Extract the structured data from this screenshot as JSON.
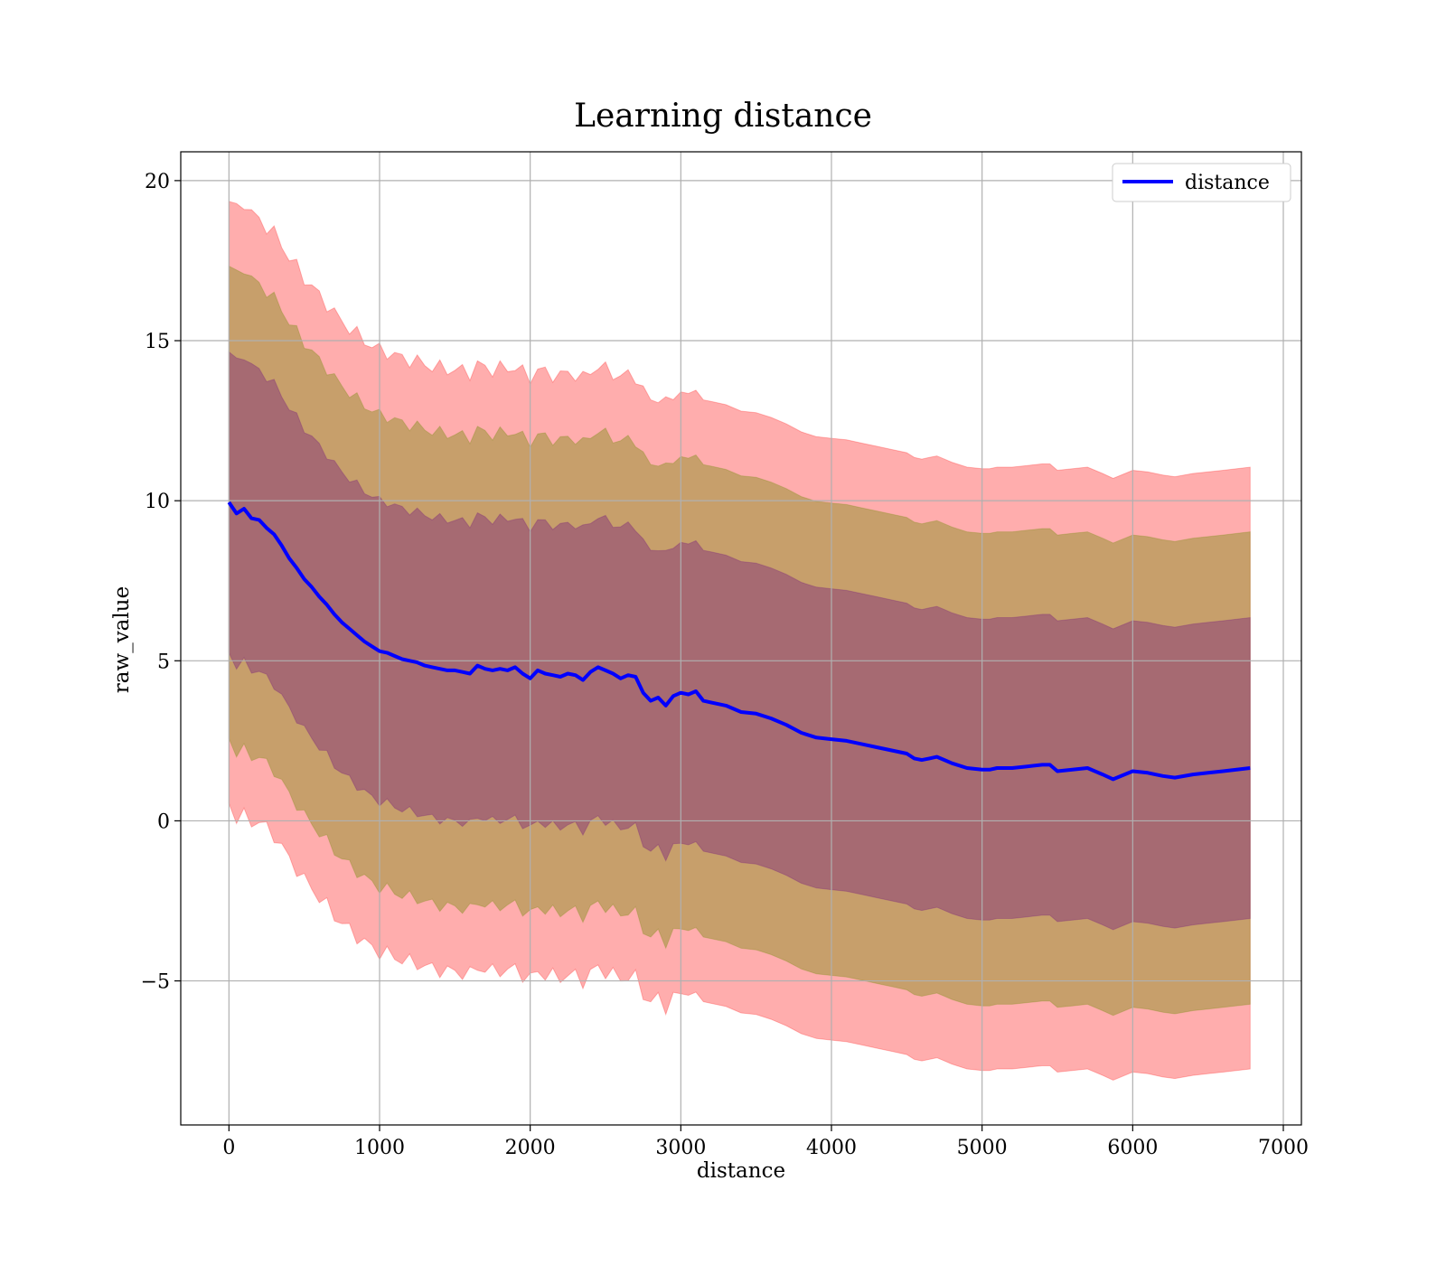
{
  "chart_data": {
    "type": "line",
    "title": "Learning distance",
    "xlabel": "distance",
    "ylabel": "raw_value",
    "xlim": [
      -320,
      7120
    ],
    "ylim": [
      -9.5,
      20.9
    ],
    "xticks": [
      0,
      1000,
      2000,
      3000,
      4000,
      5000,
      6000,
      7000
    ],
    "xtick_labels": [
      "0",
      "1000",
      "2000",
      "3000",
      "4000",
      "5000",
      "6000",
      "7000"
    ],
    "yticks": [
      -5,
      0,
      5,
      10,
      15,
      20
    ],
    "ytick_labels": [
      "−5",
      "0",
      "5",
      "10",
      "15",
      "20"
    ],
    "grid": true,
    "legend": {
      "placement": "top-right",
      "entries": [
        "distance"
      ]
    },
    "colors": {
      "line": "#0000ff",
      "band": "#ff0000",
      "band_inner": "#6a0a80",
      "band_mid": "#6b8a00"
    },
    "series": [
      {
        "name": "distance",
        "x": [
          0,
          50,
          100,
          150,
          200,
          250,
          300,
          350,
          400,
          450,
          500,
          550,
          600,
          650,
          700,
          750,
          800,
          850,
          900,
          950,
          1000,
          1050,
          1100,
          1150,
          1200,
          1250,
          1300,
          1350,
          1400,
          1450,
          1500,
          1550,
          1600,
          1650,
          1700,
          1750,
          1800,
          1850,
          1900,
          1950,
          2000,
          2050,
          2100,
          2150,
          2200,
          2250,
          2300,
          2350,
          2400,
          2450,
          2500,
          2550,
          2600,
          2650,
          2700,
          2750,
          2800,
          2850,
          2900,
          2950,
          3000,
          3050,
          3100,
          3150,
          3200,
          3300,
          3400,
          3500,
          3600,
          3700,
          3800,
          3900,
          4000,
          4100,
          4200,
          4300,
          4400,
          4500,
          4550,
          4600,
          4650,
          4700,
          4750,
          4800,
          4900,
          5000,
          5050,
          5100,
          5200,
          5300,
          5400,
          5450,
          5500,
          5600,
          5700,
          5800,
          5870,
          6000,
          6100,
          6200,
          6280,
          6400,
          6500,
          6600,
          6780
        ],
        "values": [
          9.95,
          9.6,
          9.75,
          9.45,
          9.4,
          9.15,
          8.95,
          8.6,
          8.2,
          7.9,
          7.55,
          7.3,
          7.0,
          6.75,
          6.45,
          6.2,
          6.0,
          5.8,
          5.6,
          5.45,
          5.3,
          5.25,
          5.15,
          5.05,
          5.0,
          4.95,
          4.85,
          4.8,
          4.75,
          4.7,
          4.7,
          4.65,
          4.6,
          4.85,
          4.75,
          4.7,
          4.75,
          4.7,
          4.8,
          4.6,
          4.45,
          4.7,
          4.6,
          4.55,
          4.5,
          4.6,
          4.55,
          4.4,
          4.65,
          4.8,
          4.7,
          4.6,
          4.45,
          4.55,
          4.5,
          4.0,
          3.75,
          3.85,
          3.6,
          3.9,
          4.0,
          3.95,
          4.05,
          3.75,
          3.7,
          3.6,
          3.4,
          3.35,
          3.2,
          3.0,
          2.75,
          2.6,
          2.55,
          2.5,
          2.4,
          2.3,
          2.2,
          2.1,
          1.95,
          1.9,
          1.95,
          2.0,
          1.9,
          1.8,
          1.65,
          1.6,
          1.6,
          1.65,
          1.65,
          1.7,
          1.75,
          1.75,
          1.55,
          1.6,
          1.65,
          1.45,
          1.3,
          1.55,
          1.5,
          1.4,
          1.35,
          1.45,
          1.5,
          1.55,
          1.65
        ]
      }
    ],
    "bands": [
      {
        "sigma": 1,
        "half_width": [
          4.7,
          4.75,
          4.8,
          4.75,
          4.7,
          4.7,
          4.7,
          4.7,
          4.7,
          4.7,
          4.7,
          4.7,
          4.7,
          4.7,
          4.7,
          4.7,
          4.7,
          4.7,
          4.7,
          4.7,
          4.7,
          4.7,
          4.7,
          4.7,
          4.7,
          4.7,
          4.7,
          4.7,
          4.7,
          4.7,
          4.7,
          4.7,
          4.7,
          4.7,
          4.7,
          4.7,
          4.7,
          4.7,
          4.7,
          4.7,
          4.7,
          4.7,
          4.7,
          4.7,
          4.7,
          4.7,
          4.7,
          4.7,
          4.7,
          4.7,
          4.7,
          4.7,
          4.7,
          4.7,
          4.7,
          4.7,
          4.7,
          4.7,
          4.7,
          4.7,
          4.7,
          4.7,
          4.7,
          4.7,
          4.7,
          4.7,
          4.7,
          4.7,
          4.7,
          4.7,
          4.7,
          4.7,
          4.7,
          4.7,
          4.7,
          4.7,
          4.7,
          4.7,
          4.7,
          4.7,
          4.7,
          4.7,
          4.7,
          4.7,
          4.7,
          4.7,
          4.7,
          4.7,
          4.7,
          4.7,
          4.7,
          4.7,
          4.7,
          4.7,
          4.7,
          4.7,
          4.7,
          4.7,
          4.7,
          4.7,
          4.7,
          4.7,
          4.7,
          4.7,
          4.7
        ]
      },
      {
        "sigma": 2,
        "half_width_factor": 1.57
      },
      {
        "sigma": 3,
        "half_width_factor": 2.0
      }
    ]
  }
}
